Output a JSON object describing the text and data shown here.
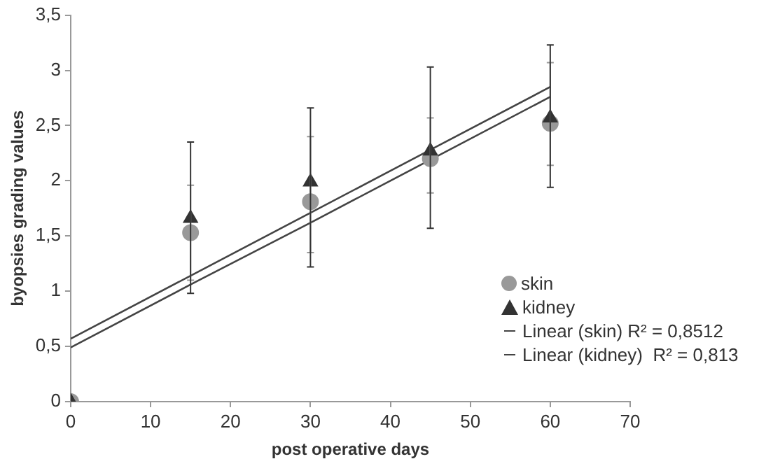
{
  "chart_data": {
    "type": "scatter",
    "xlabel": "post operative days",
    "ylabel": "byopsies grading values",
    "x": [
      0,
      15,
      30,
      45,
      60
    ],
    "xlim": [
      0,
      70
    ],
    "xticks": [
      0,
      10,
      20,
      30,
      40,
      50,
      60,
      70
    ],
    "ylim": [
      0,
      3.5
    ],
    "yticks": [
      0,
      {
        "value": 0.5,
        "label": "0,5"
      },
      1,
      {
        "value": 1.5,
        "label": "1,5"
      },
      2,
      {
        "value": 2.5,
        "label": "2,5"
      },
      3,
      {
        "value": 3.5,
        "label": "3,5"
      }
    ],
    "grid": false,
    "legend": "right",
    "series": [
      {
        "name": "skin",
        "marker": "circle",
        "color": "#999999",
        "values": [
          0,
          1.53,
          1.81,
          2.2,
          2.52
        ],
        "errors": [
          null,
          [
            1.1,
            1.96
          ],
          [
            1.35,
            2.4
          ],
          [
            1.89,
            2.57
          ],
          [
            2.14,
            3.07
          ]
        ]
      },
      {
        "name": "kidney",
        "marker": "triangle",
        "color": "#333333",
        "values": [
          0,
          1.66,
          1.99,
          2.27,
          2.57
        ],
        "errors": [
          null,
          [
            0.98,
            2.35
          ],
          [
            1.22,
            2.66
          ],
          [
            1.57,
            3.03
          ],
          [
            1.94,
            3.23
          ]
        ]
      },
      {
        "name": "Linear (skin) R² = 0,8512",
        "type": "line",
        "line_style": "solid",
        "color": "#444444",
        "values": [
          0.49,
          1.06,
          1.62,
          2.19,
          2.76
        ]
      },
      {
        "name": "Linear (kidney)  R² = 0,813",
        "type": "line",
        "line_style": "solid",
        "color": "#444444",
        "values": [
          0.57,
          1.14,
          1.71,
          2.28,
          2.85
        ]
      }
    ]
  }
}
